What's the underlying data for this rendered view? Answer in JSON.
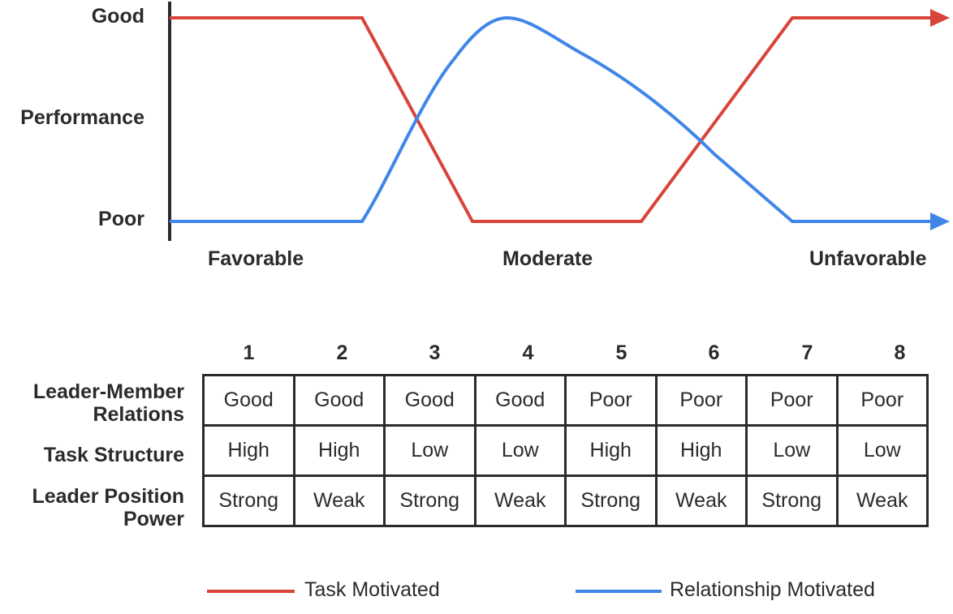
{
  "chart": {
    "y_labels": {
      "good": "Good",
      "middle": "Performance",
      "poor": "Poor"
    },
    "x_labels": {
      "left": "Favorable",
      "middle": "Moderate",
      "right": "Unfavorable"
    }
  },
  "colors": {
    "task": "#d9443a",
    "relationship": "#3f86e8",
    "axis": "#2b2b2b"
  },
  "table": {
    "columns": [
      "1",
      "2",
      "3",
      "4",
      "5",
      "6",
      "7",
      "8"
    ],
    "rows": [
      {
        "label_line1": "Leader-Member",
        "label_line2": "Relations",
        "cells": [
          "Good",
          "Good",
          "Good",
          "Good",
          "Poor",
          "Poor",
          "Poor",
          "Poor"
        ]
      },
      {
        "label_line1": "Task Structure",
        "label_line2": "",
        "cells": [
          "High",
          "High",
          "Low",
          "Low",
          "High",
          "High",
          "Low",
          "Low"
        ]
      },
      {
        "label_line1": "Leader Position",
        "label_line2": "Power",
        "cells": [
          "Strong",
          "Weak",
          "Strong",
          "Weak",
          "Strong",
          "Weak",
          "Strong",
          "Weak"
        ]
      }
    ]
  },
  "legend": {
    "task": "Task Motivated",
    "relationship": "Relationship Motivated"
  }
}
